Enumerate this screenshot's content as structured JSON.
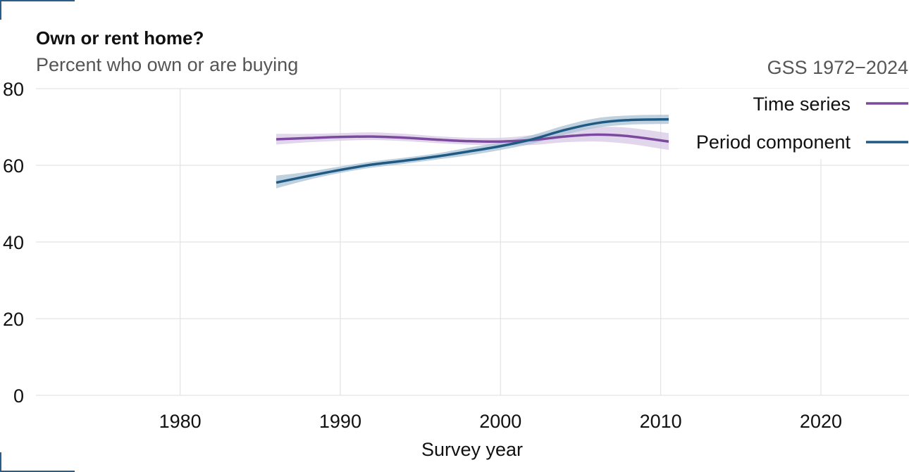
{
  "chart_data": {
    "type": "line",
    "title": "Own or rent home?",
    "subtitle": "Percent who own or are buying",
    "source": "GSS 1972−2024",
    "xlabel": "Survey year",
    "ylabel": "",
    "xlim": [
      1971,
      2025.5
    ],
    "ylim": [
      0,
      80
    ],
    "x_ticks": [
      1980,
      1990,
      2000,
      2010,
      2020
    ],
    "y_ticks": [
      0,
      20,
      40,
      60,
      80
    ],
    "grid": true,
    "legend_position": "top-right",
    "series": [
      {
        "name": "Time series",
        "color": "#7b4a9e",
        "band_color": "#d8c8e6",
        "points": [
          {
            "x": 1986,
            "y": 66.8,
            "lo": 65.4,
            "hi": 68.2
          },
          {
            "x": 1988,
            "y": 67.1,
            "lo": 66.0,
            "hi": 68.2
          },
          {
            "x": 1990,
            "y": 67.4,
            "lo": 66.4,
            "hi": 68.4
          },
          {
            "x": 1992,
            "y": 67.5,
            "lo": 66.6,
            "hi": 68.6
          },
          {
            "x": 1994,
            "y": 67.2,
            "lo": 66.3,
            "hi": 68.2
          },
          {
            "x": 1996,
            "y": 66.7,
            "lo": 65.8,
            "hi": 67.6
          },
          {
            "x": 1998,
            "y": 66.3,
            "lo": 65.4,
            "hi": 67.2
          },
          {
            "x": 2000,
            "y": 66.2,
            "lo": 65.2,
            "hi": 67.2
          },
          {
            "x": 2002,
            "y": 66.6,
            "lo": 65.3,
            "hi": 67.9
          },
          {
            "x": 2004,
            "y": 67.5,
            "lo": 66.0,
            "hi": 69.2
          },
          {
            "x": 2006,
            "y": 68.0,
            "lo": 66.2,
            "hi": 70.0
          },
          {
            "x": 2008,
            "y": 67.6,
            "lo": 65.6,
            "hi": 69.8
          },
          {
            "x": 2010.5,
            "y": 66.2,
            "lo": 64.0,
            "hi": 68.4
          }
        ]
      },
      {
        "name": "Period component",
        "color": "#1f5a85",
        "band_color": "#a9c1d4",
        "points": [
          {
            "x": 1986,
            "y": 55.5,
            "lo": 54.0,
            "hi": 57.3
          },
          {
            "x": 1988,
            "y": 57.2,
            "lo": 56.2,
            "hi": 58.3
          },
          {
            "x": 1990,
            "y": 58.8,
            "lo": 58.0,
            "hi": 59.7
          },
          {
            "x": 1992,
            "y": 60.2,
            "lo": 59.4,
            "hi": 61.0
          },
          {
            "x": 1994,
            "y": 61.2,
            "lo": 60.4,
            "hi": 62.0
          },
          {
            "x": 1996,
            "y": 62.3,
            "lo": 61.5,
            "hi": 63.1
          },
          {
            "x": 1998,
            "y": 63.6,
            "lo": 62.6,
            "hi": 64.6
          },
          {
            "x": 2000,
            "y": 65.0,
            "lo": 64.0,
            "hi": 66.0
          },
          {
            "x": 2002,
            "y": 66.8,
            "lo": 65.7,
            "hi": 67.9
          },
          {
            "x": 2004,
            "y": 69.2,
            "lo": 68.0,
            "hi": 70.4
          },
          {
            "x": 2006,
            "y": 71.0,
            "lo": 69.8,
            "hi": 72.3
          },
          {
            "x": 2008,
            "y": 71.8,
            "lo": 70.6,
            "hi": 73.0
          },
          {
            "x": 2010.5,
            "y": 72.0,
            "lo": 70.8,
            "hi": 73.2
          }
        ]
      }
    ]
  }
}
